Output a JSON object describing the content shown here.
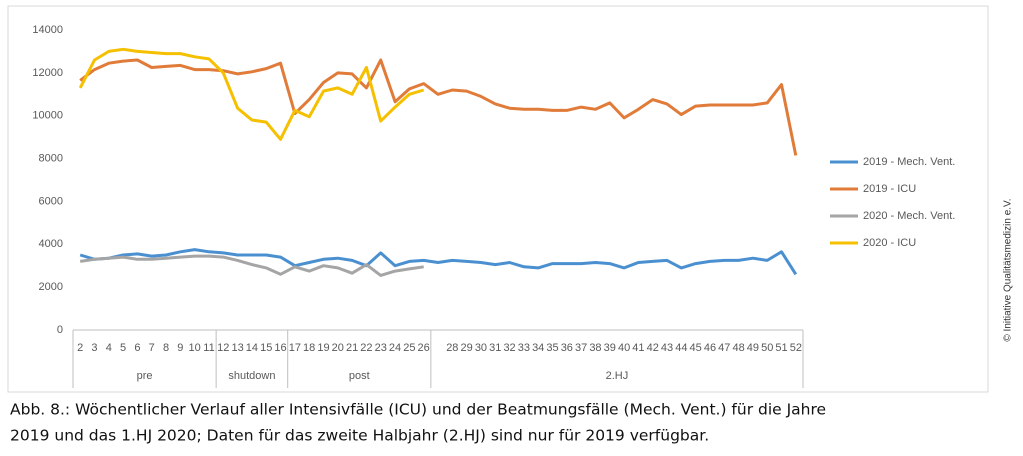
{
  "chart_data": {
    "type": "line",
    "categories": [
      "2",
      "3",
      "4",
      "5",
      "6",
      "7",
      "8",
      "9",
      "10",
      "11",
      "12",
      "13",
      "14",
      "15",
      "16",
      "17",
      "18",
      "19",
      "20",
      "21",
      "22",
      "23",
      "24",
      "25",
      "26",
      null,
      "28",
      "29",
      "30",
      "31",
      "32",
      "33",
      "34",
      "35",
      "36",
      "37",
      "38",
      "39",
      "40",
      "41",
      "42",
      "43",
      "44",
      "45",
      "46",
      "47",
      "48",
      "49",
      "50",
      "51",
      "52"
    ],
    "groups": [
      {
        "label": "pre",
        "count": 10
      },
      {
        "label": "shutdown",
        "count": 5
      },
      {
        "label": "post",
        "count": 10
      },
      {
        "label": "2.HJ",
        "count": 26
      }
    ],
    "ylim": [
      0,
      14000
    ],
    "yticks": [
      0,
      2000,
      4000,
      6000,
      8000,
      10000,
      12000,
      14000
    ],
    "grid": false,
    "legend": "right",
    "series": [
      {
        "name": "2019 - Mech. Vent.",
        "color": "#4a90d0",
        "values": [
          3500,
          3300,
          3350,
          3500,
          3550,
          3450,
          3500,
          3650,
          3750,
          3650,
          3600,
          3500,
          3500,
          3500,
          3400,
          3000,
          3150,
          3300,
          3350,
          3250,
          3000,
          3600,
          3000,
          3200,
          3250,
          3150,
          3250,
          3200,
          3150,
          3050,
          3150,
          2950,
          2900,
          3100,
          3100,
          3100,
          3150,
          3100,
          2900,
          3150,
          3200,
          3250,
          2900,
          3100,
          3200,
          3250,
          3250,
          3350,
          3250,
          3650,
          2600
        ]
      },
      {
        "name": "2019 - ICU",
        "color": "#e07b39",
        "values": [
          11650,
          12150,
          12450,
          12550,
          12600,
          12250,
          12300,
          12350,
          12150,
          12150,
          12100,
          11950,
          12050,
          12200,
          12450,
          10100,
          10750,
          11550,
          12000,
          11950,
          11300,
          12600,
          10650,
          11250,
          11500,
          11000,
          11200,
          11150,
          10900,
          10550,
          10350,
          10300,
          10300,
          10250,
          10250,
          10400,
          10300,
          10600,
          9900,
          10300,
          10750,
          10550,
          10050,
          10450,
          10500,
          10500,
          10500,
          10500,
          10600,
          11450,
          8150
        ]
      },
      {
        "name": "2020 - Mech. Vent.",
        "color": "#a5a5a5",
        "values": [
          3200,
          3300,
          3350,
          3400,
          3300,
          3300,
          3350,
          3400,
          3450,
          3450,
          3400,
          3250,
          3050,
          2900,
          2600,
          2950,
          2750,
          3000,
          2900,
          2650,
          3050,
          2550,
          2750,
          2850,
          2950,
          null,
          null,
          null,
          null,
          null,
          null,
          null,
          null,
          null,
          null,
          null,
          null,
          null,
          null,
          null,
          null,
          null,
          null,
          null,
          null,
          null,
          null,
          null,
          null,
          null,
          null
        ]
      },
      {
        "name": "2020 - ICU",
        "color": "#f5c000",
        "values": [
          11300,
          12600,
          13000,
          13100,
          13000,
          12950,
          12900,
          12900,
          12750,
          12650,
          12000,
          10350,
          9800,
          9700,
          8900,
          10250,
          9950,
          11150,
          11300,
          11000,
          12250,
          9750,
          10400,
          11000,
          11200,
          null,
          null,
          null,
          null,
          null,
          null,
          null,
          null,
          null,
          null,
          null,
          null,
          null,
          null,
          null,
          null,
          null,
          null,
          null,
          null,
          null,
          null,
          null,
          null,
          null,
          null
        ]
      }
    ],
    "caption": [
      "Abb. 8.: Wöchentlicher Verlauf aller Intensivfälle (ICU) und der Beatmungsfälle (Mech. Vent.) für die Jahre",
      "2019 und das 1.HJ 2020; Daten für das zweite Halbjahr (2.HJ) sind nur für 2019 verfügbar."
    ],
    "copyright": "© Initiative Qualitätsmedizin e.V."
  }
}
